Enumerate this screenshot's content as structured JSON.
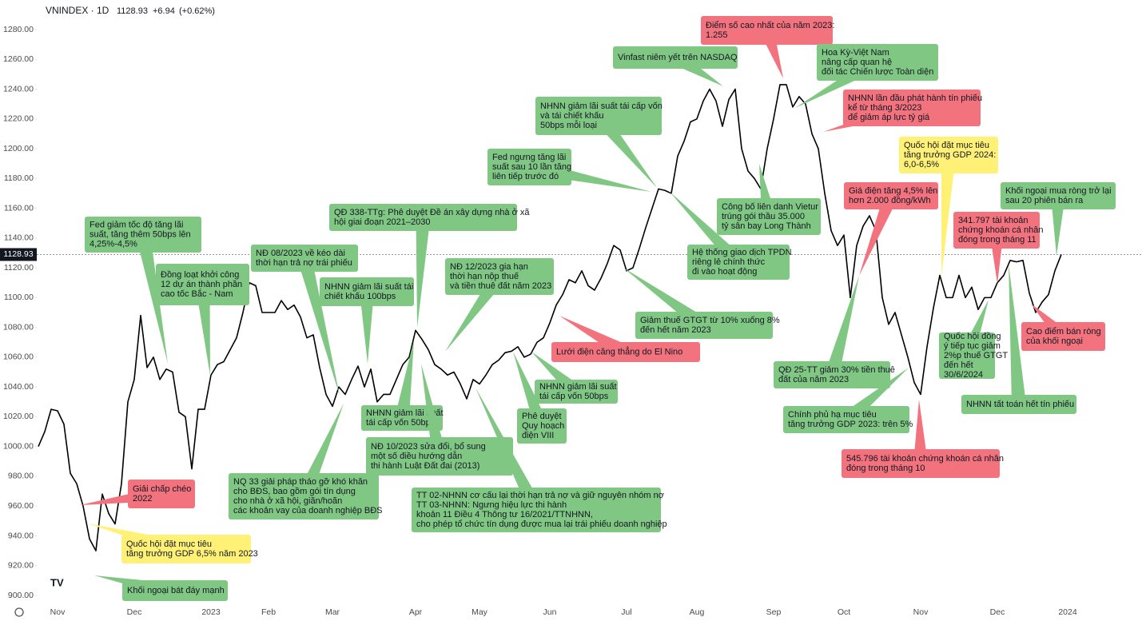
{
  "chart_data": {
    "type": "line",
    "symbol": "VNINDEX · 1D",
    "last_price": 1128.93,
    "change": "+6.94",
    "change_pct": "(+0.62%)",
    "color": "#000000",
    "categories": [
      null,
      null,
      null,
      "Nov",
      null,
      null,
      null,
      null,
      null,
      null,
      null,
      null,
      null,
      null,
      null,
      "Dec",
      null,
      null,
      null,
      null,
      null,
      null,
      null,
      null,
      null,
      null,
      null,
      "2023",
      null,
      null,
      null,
      null,
      null,
      null,
      null,
      null,
      "Feb",
      null,
      null,
      null,
      null,
      null,
      null,
      null,
      null,
      null,
      "Mar",
      null,
      null,
      null,
      null,
      null,
      null,
      null,
      null,
      null,
      null,
      null,
      null,
      "Apr",
      null,
      null,
      null,
      null,
      null,
      null,
      null,
      null,
      null,
      "May",
      null,
      null,
      null,
      null,
      null,
      null,
      null,
      null,
      null,
      null,
      "Jun",
      null,
      null,
      null,
      null,
      null,
      null,
      null,
      null,
      null,
      null,
      null,
      "Jul",
      null,
      null,
      null,
      null,
      null,
      null,
      null,
      null,
      null,
      null,
      "Aug",
      null,
      null,
      null,
      null,
      null,
      null,
      null,
      null,
      null,
      null,
      null,
      "Sep",
      null,
      null,
      null,
      null,
      null,
      null,
      null,
      null,
      null,
      null,
      "Oct",
      null,
      null,
      null,
      null,
      null,
      null,
      null,
      null,
      null,
      null,
      null,
      "Nov",
      null,
      null,
      null,
      null,
      null,
      null,
      null,
      null,
      null,
      null,
      null,
      "Dec",
      null,
      null,
      null,
      null,
      null,
      null,
      null,
      null,
      null,
      null,
      "2024"
    ],
    "values": [
      1000,
      1010,
      1025,
      1024,
      1015,
      982,
      975,
      960,
      938,
      930,
      968,
      955,
      948,
      975,
      1030,
      1045,
      1088,
      1053,
      1060,
      1045,
      1052,
      1050,
      1023,
      1020,
      985,
      1025,
      1025,
      1048,
      1055,
      1057,
      1065,
      1073,
      1090,
      1110,
      1108,
      1090,
      1090,
      1090,
      1098,
      1092,
      1095,
      1087,
      1073,
      1075,
      1053,
      1035,
      1027,
      1040,
      1035,
      1045,
      1054,
      1040,
      1052,
      1030,
      1035,
      1035,
      1045,
      1055,
      1060,
      1078,
      1072,
      1065,
      1055,
      1052,
      1048,
      1050,
      1042,
      1032,
      1045,
      1042,
      1048,
      1055,
      1058,
      1063,
      1064,
      1067,
      1060,
      1062,
      1070,
      1073,
      1083,
      1095,
      1102,
      1112,
      1110,
      1118,
      1108,
      1105,
      1113,
      1123,
      1135,
      1132,
      1118,
      1120,
      1133,
      1147,
      1160,
      1173,
      1172,
      1170,
      1195,
      1205,
      1218,
      1220,
      1232,
      1240,
      1232,
      1215,
      1233,
      1240,
      1200,
      1185,
      1180,
      1173,
      1200,
      1220,
      1243,
      1243,
      1228,
      1235,
      1230,
      1210,
      1200,
      1170,
      1145,
      1135,
      1142,
      1100,
      1135,
      1148,
      1155,
      1145,
      1100,
      1082,
      1090,
      1075,
      1060,
      1043,
      1035,
      1067,
      1093,
      1115,
      1100,
      1100,
      1115,
      1100,
      1107,
      1092,
      1100,
      1100,
      1110,
      1115,
      1125,
      1124,
      1125,
      1103,
      1090,
      1097,
      1102,
      1118,
      1128.93,
      null
    ],
    "ylim": [
      900,
      1280
    ],
    "yticks": [
      {
        "value": 900,
        "label": "900.00"
      },
      {
        "value": 920,
        "label": "920.00"
      },
      {
        "value": 940,
        "label": "940.00"
      },
      {
        "value": 960,
        "label": "960.00"
      },
      {
        "value": 980,
        "label": "980.00"
      },
      {
        "value": 1000,
        "label": "1000.00"
      },
      {
        "value": 1020,
        "label": "1020.00"
      },
      {
        "value": 1040,
        "label": "1040.00"
      },
      {
        "value": 1060,
        "label": "1060.00"
      },
      {
        "value": 1080,
        "label": "1080.00"
      },
      {
        "value": 1100,
        "label": "1100.00"
      },
      {
        "value": 1120,
        "label": "1120.00"
      },
      {
        "value": 1140,
        "label": "1140.00"
      },
      {
        "value": 1160,
        "label": "1160.00"
      },
      {
        "value": 1180,
        "label": "1180.00"
      },
      {
        "value": 1200,
        "label": "1200.00"
      },
      {
        "value": 1220,
        "label": "1220.00"
      },
      {
        "value": 1240,
        "label": "1240.00"
      },
      {
        "value": 1260,
        "label": "1260.00"
      },
      {
        "value": 1280,
        "label": "1280.00"
      }
    ],
    "grid": false,
    "annotations": [
      {
        "lines": [
          "Fed giảm tốc độ tăng lãi",
          "suất, tăng thêm 50bps lên",
          "4,25%-4,5%"
        ],
        "color": "#81c784"
      },
      {
        "lines": [
          "Đồng loạt khởi công",
          "12 dự án thành phần",
          "cao tốc Bắc - Nam"
        ],
        "color": "#81c784"
      },
      {
        "lines": [
          "NĐ 08/2023 về kéo dài",
          "thời hạn trả nợ trái phiếu"
        ],
        "color": "#81c784"
      },
      {
        "lines": [
          "QĐ 338-TTg: Phê duyệt Đề án xây dựng nhà ở xã",
          "hội giai đoạn 2021–2030"
        ],
        "color": "#81c784"
      },
      {
        "lines": [
          "NHNN giảm lãi suất tái",
          "chiết khấu 100bps"
        ],
        "color": "#81c784"
      },
      {
        "lines": [
          "NĐ 12/2023 gia hạn",
          "thời hạn nộp thuế",
          "và tiền thuê đất năm 2023"
        ],
        "color": "#81c784"
      },
      {
        "lines": [
          "NHNN giảm lãi suất",
          "tái cấp vốn 50bps"
        ],
        "color": "#81c784"
      },
      {
        "lines": [
          "NĐ 10/2023 sửa đổi, bổ sung",
          "một số điều hướng dẫn",
          "thi hành Luật Đất đai (2013)"
        ],
        "color": "#81c784"
      },
      {
        "lines": [
          "NQ 33 giải pháp tháo gỡ khó khăn",
          "cho BĐS, bao gồm gói tín dụng",
          "cho nhà ở xã hội, giãn/hoãn",
          "các khoản vay của doanh nghiệp BĐS"
        ],
        "color": "#81c784"
      },
      {
        "lines": [
          "TT 02-NHNN cơ cấu lại thời hạn trả nợ và giữ nguyên nhóm nợ",
          "TT 03-NHNN: Ngưng hiệu lực thi hành",
          "khoản 11 Điều 4 Thông tư 16/2021/TTNHNN,",
          "cho phép tổ chức tín dụng được mua lại trái phiếu doanh nghiệp"
        ],
        "color": "#81c784"
      },
      {
        "lines": [
          "Phê duyệt",
          "Quy hoạch",
          "điện VIII"
        ],
        "color": "#81c784"
      },
      {
        "lines": [
          "NHNN giảm lãi suất",
          "tái cấp vốn 50bps"
        ],
        "color": "#81c784"
      },
      {
        "lines": [
          "Lưới điện căng thẳng do El Nino"
        ],
        "color": "#f2737e"
      },
      {
        "lines": [
          "Fed ngưng tăng lãi",
          "suất sau 10 lần tăng",
          "liên tiếp trước đó"
        ],
        "color": "#81c784"
      },
      {
        "lines": [
          "NHNN giảm lãi suất tái cấp vốn",
          "và tái chiết khấu",
          "50bps mỗi loại"
        ],
        "color": "#81c784"
      },
      {
        "lines": [
          "Vinfast niêm yết trên NASDAQ"
        ],
        "color": "#81c784"
      },
      {
        "lines": [
          "Điểm số cao nhất của năm 2023:",
          "1.255"
        ],
        "color": "#f2737e"
      },
      {
        "lines": [
          "Hoa Kỳ-Việt Nam",
          "nâng cấp quan hệ",
          "đối tác Chiến lược Toàn diện"
        ],
        "color": "#81c784"
      },
      {
        "lines": [
          "NHNN lần đầu phát hành tín phiếu",
          "kể từ tháng 3/2023",
          "để giảm áp lực tỷ giá"
        ],
        "color": "#f2737e"
      },
      {
        "lines": [
          "Công bố liên danh Vietur",
          "trúng gói thầu 35.000",
          "tỷ sân bay Long Thành"
        ],
        "color": "#81c784"
      },
      {
        "lines": [
          "Hệ thống giao dịch TPDN",
          "riêng lẻ chính thức",
          "đi vào hoạt động"
        ],
        "color": "#81c784"
      },
      {
        "lines": [
          "Giảm thuế GTGT từ 10% xuống 8%",
          "đến hết năm 2023"
        ],
        "color": "#81c784"
      },
      {
        "lines": [
          "Giá điện tăng 4,5% lên",
          "hơn 2.000 đồng/kWh"
        ],
        "color": "#f2737e"
      },
      {
        "lines": [
          "Quốc hội đặt mục tiêu",
          "tăng trưởng GDP 2024:",
          "6,0-6,5%"
        ],
        "color": "#fff176"
      },
      {
        "lines": [
          "Khối ngoại mua ròng trở lại",
          "sau 20 phiên bán ra"
        ],
        "color": "#81c784"
      },
      {
        "lines": [
          "341.797 tài khoản",
          "chứng khoán cá nhân",
          "đóng trong tháng 11"
        ],
        "color": "#f2737e"
      },
      {
        "lines": [
          "QĐ 25-TT giảm 30% tiền thuê",
          "đất của năm 2023"
        ],
        "color": "#81c784"
      },
      {
        "lines": [
          "Chính phủ hạ mục tiêu",
          "tăng trưởng GDP 2023: trên 5%"
        ],
        "color": "#81c784"
      },
      {
        "lines": [
          "545.796 tài khoản chứng khoán cá nhân",
          "đóng trong tháng 10"
        ],
        "color": "#f2737e"
      },
      {
        "lines": [
          "Quốc hội đồng",
          "ý tiếp tục giảm",
          "2%p thuế GTGT",
          "đến hết",
          "30/6/2024"
        ],
        "color": "#81c784"
      },
      {
        "lines": [
          "NHNN tất toán hết tín phiếu"
        ],
        "color": "#81c784"
      },
      {
        "lines": [
          "Cao điểm bán ròng",
          "của khối ngoại"
        ],
        "color": "#f2737e"
      },
      {
        "lines": [
          "Giải chấp chéo",
          "2022"
        ],
        "color": "#f2737e"
      },
      {
        "lines": [
          "Quốc hội đặt mục tiêu",
          "tăng trưởng GDP 6,5% năm 2023"
        ],
        "color": "#fff176"
      },
      {
        "lines": [
          "Khối ngoại bát đáy mạnh"
        ],
        "color": "#81c784"
      }
    ]
  }
}
